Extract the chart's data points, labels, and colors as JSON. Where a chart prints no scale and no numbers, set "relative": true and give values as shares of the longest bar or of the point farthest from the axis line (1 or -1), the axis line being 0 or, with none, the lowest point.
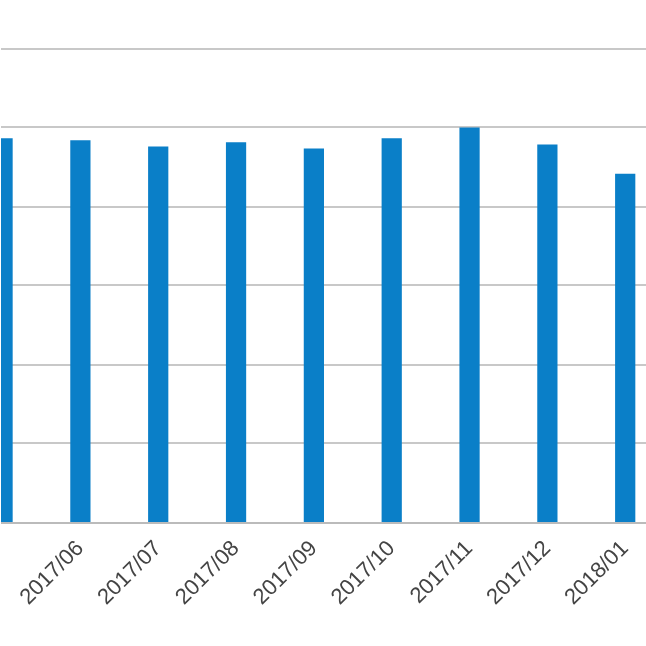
{
  "chart_data": {
    "type": "bar",
    "relative": true,
    "grid": "y",
    "color": "#0a7fc8",
    "categories": [
      null,
      "2017/06",
      "2017/07",
      "2017/08",
      "2017/09",
      "2017/10",
      "2017/11",
      "2017/12",
      "2018/01"
    ],
    "values": [
      0.973,
      0.968,
      0.952,
      0.963,
      0.947,
      0.973,
      1,
      0.957,
      0.883
    ]
  }
}
